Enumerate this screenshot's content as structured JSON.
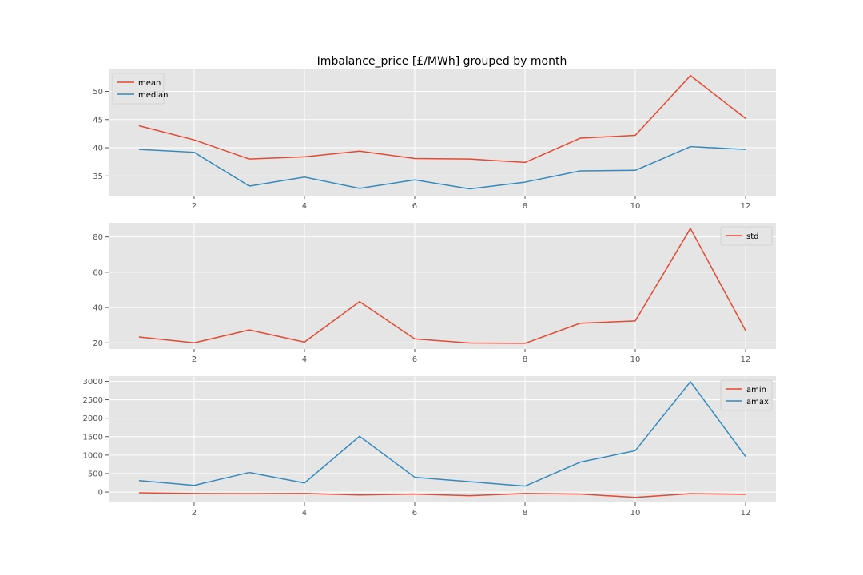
{
  "figure": {
    "title": "Imbalance_price [£/MWh] grouped by month"
  },
  "chart_data": [
    {
      "type": "line",
      "x": [
        1,
        2,
        3,
        4,
        5,
        6,
        7,
        8,
        9,
        10,
        11,
        12
      ],
      "series": [
        {
          "name": "mean",
          "color": "#e24a33",
          "values": [
            43.9,
            41.4,
            38.0,
            38.4,
            39.4,
            38.1,
            38.0,
            37.4,
            41.7,
            42.2,
            52.8,
            45.2
          ]
        },
        {
          "name": "median",
          "color": "#348abd",
          "values": [
            39.7,
            39.2,
            33.2,
            34.8,
            32.8,
            34.3,
            32.7,
            33.9,
            35.9,
            36.0,
            40.2,
            39.7
          ]
        }
      ],
      "xlim": [
        0.45,
        12.55
      ],
      "ylim": [
        31.5,
        53.9
      ],
      "xticks": [
        2,
        4,
        6,
        8,
        10,
        12
      ],
      "yticks": [
        35,
        40,
        45,
        50
      ],
      "legend": "top-left",
      "grid": true
    },
    {
      "type": "line",
      "x": [
        1,
        2,
        3,
        4,
        5,
        6,
        7,
        8,
        9,
        10,
        11,
        12
      ],
      "series": [
        {
          "name": "std",
          "color": "#e24a33",
          "values": [
            23.3,
            20.0,
            27.3,
            20.4,
            43.3,
            22.2,
            19.9,
            19.7,
            31.1,
            32.4,
            84.8,
            26.9
          ]
        }
      ],
      "xlim": [
        0.45,
        12.55
      ],
      "ylim": [
        16.5,
        88.0
      ],
      "xticks": [
        2,
        4,
        6,
        8,
        10,
        12
      ],
      "yticks": [
        20,
        40,
        60,
        80
      ],
      "legend": "top-right",
      "grid": true
    },
    {
      "type": "line",
      "x": [
        1,
        2,
        3,
        4,
        5,
        6,
        7,
        8,
        9,
        10,
        11,
        12
      ],
      "series": [
        {
          "name": "amin",
          "color": "#e24a33",
          "values": [
            -20,
            -40,
            -45,
            -40,
            -80,
            -55,
            -100,
            -40,
            -55,
            -145,
            -45,
            -60
          ]
        },
        {
          "name": "amax",
          "color": "#348abd",
          "values": [
            310,
            180,
            530,
            245,
            1510,
            400,
            280,
            160,
            810,
            1120,
            2990,
            960
          ]
        }
      ],
      "xlim": [
        0.45,
        12.55
      ],
      "ylim": [
        -280,
        3140
      ],
      "xticks": [
        2,
        4,
        6,
        8,
        10,
        12
      ],
      "yticks": [
        0,
        500,
        1000,
        1500,
        2000,
        2500,
        3000
      ],
      "legend": "top-right",
      "grid": true
    }
  ]
}
